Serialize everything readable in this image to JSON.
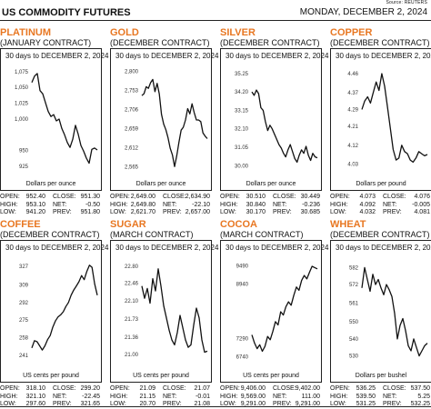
{
  "header": {
    "source": "Source: REUTERS",
    "title": "US COMMODITY FUTURES",
    "date": "MONDAY, DECEMBER 2, 2024"
  },
  "stat_labels": {
    "open": "OPEN:",
    "close": "CLOSE:",
    "high": "HIGH:",
    "net": "NET:",
    "low": "LOW:",
    "prev": "PREV:"
  },
  "colors": {
    "commodity_name": "#e87722",
    "line": "#111111"
  },
  "chart_data": [
    {
      "type": "line",
      "name": "PLATINUM",
      "contract": "(JANUARY CONTRACT)",
      "period": "30 days to DECEMBER 2, 2024",
      "unit": "Dollars per ounce",
      "yticks": [
        "925",
        "950",
        "1,000",
        "1,025",
        "1,050",
        "1,075"
      ],
      "ytick_values": [
        925,
        950,
        1000,
        1025,
        1050,
        1075
      ],
      "ylim": [
        915,
        1082
      ],
      "values": [
        1058,
        1068,
        1072,
        1045,
        1040,
        1026,
        1012,
        1004,
        1007,
        997,
        1000,
        985,
        975,
        963,
        955,
        968,
        990,
        976,
        958,
        949,
        938,
        930,
        952,
        954,
        951
      ],
      "stats": {
        "open": "952.40",
        "close": "951.30",
        "high": "953.10",
        "net": "-0.50",
        "low": "941.20",
        "prev": "951.80"
      }
    },
    {
      "type": "line",
      "name": "GOLD",
      "contract": "(DECEMBER CONTRACT)",
      "period": "30 days to DECEMBER 2, 2024",
      "unit": "Dollars per ounce",
      "yticks": [
        "2,565",
        "2,612",
        "2,659",
        "2,706",
        "2,753",
        "2,800"
      ],
      "ytick_values": [
        2565,
        2612,
        2659,
        2706,
        2753,
        2800
      ],
      "ylim": [
        2550,
        2810
      ],
      "values": [
        2740,
        2745,
        2762,
        2758,
        2772,
        2780,
        2750,
        2770,
        2744,
        2694,
        2670,
        2656,
        2636,
        2610,
        2594,
        2565,
        2592,
        2625,
        2655,
        2662,
        2680,
        2708,
        2695,
        2720,
        2698,
        2680,
        2680,
        2676,
        2648,
        2640,
        2634
      ],
      "stats": {
        "open": "2,649.00",
        "close": "2,634.90",
        "high": "2,649.80",
        "net": "-22.10",
        "low": "2,621.70",
        "prev": "2,657.00"
      }
    },
    {
      "type": "line",
      "name": "SILVER",
      "contract": "(DECEMBER CONTRACT)",
      "period": "30 days to DECEMBER 2, 2024",
      "unit": "Dollars per ounce",
      "yticks": [
        "30.00",
        "31.05",
        "32.10",
        "33.15",
        "34.20",
        "35.25"
      ],
      "ytick_values": [
        30.0,
        31.05,
        32.1,
        33.15,
        34.2,
        35.25
      ],
      "ylim": [
        29.6,
        35.6
      ],
      "values": [
        34.2,
        34.0,
        34.3,
        34.1,
        33.3,
        33.15,
        32.5,
        32.0,
        32.3,
        32.1,
        31.8,
        31.5,
        31.2,
        31.0,
        30.7,
        30.5,
        30.9,
        31.2,
        30.8,
        30.4,
        30.2,
        30.6,
        30.9,
        30.7,
        31.1,
        30.6,
        30.3,
        30.7,
        30.5,
        30.45
      ],
      "stats": {
        "open": "30.510",
        "close": "30.449",
        "high": "30.840",
        "net": "-0.236",
        "low": "30.170",
        "prev": "30.685"
      }
    },
    {
      "type": "line",
      "name": "COPPER",
      "contract": "(DECEMBER CONTRACT)",
      "period": "30 days to DECEMBER 2, 2024",
      "unit": "Dollars per pound",
      "yticks": [
        "4.03",
        "4.12",
        "4.21",
        "4.29",
        "4.37",
        "4.46"
      ],
      "ytick_values": [
        4.03,
        4.12,
        4.21,
        4.29,
        4.37,
        4.46
      ],
      "ylim": [
        3.99,
        4.49
      ],
      "values": [
        4.29,
        4.33,
        4.35,
        4.32,
        4.37,
        4.42,
        4.38,
        4.46,
        4.4,
        4.3,
        4.2,
        4.1,
        4.05,
        4.06,
        4.12,
        4.09,
        4.08,
        4.05,
        4.04,
        4.06,
        4.09,
        4.08,
        4.07,
        4.076
      ],
      "stats": {
        "open": "4.073",
        "close": "4.076",
        "high": "4.092",
        "net": "-0.005",
        "low": "4.032",
        "prev": "4.081"
      }
    },
    {
      "type": "line",
      "name": "COFFEE",
      "contract": "(DECEMBER CONTRACT)",
      "period": "30 days to DECEMBER 2, 2024",
      "unit": "US cents per pound",
      "yticks": [
        "241",
        "258",
        "275",
        "292",
        "309",
        "327"
      ],
      "ytick_values": [
        241,
        258,
        275,
        292,
        309,
        327
      ],
      "ylim": [
        232,
        334
      ],
      "values": [
        248,
        255,
        254,
        250,
        246,
        250,
        256,
        260,
        268,
        274,
        278,
        280,
        283,
        288,
        292,
        299,
        304,
        308,
        312,
        318,
        314,
        322,
        328,
        326,
        310,
        299
      ],
      "stats": {
        "open": "318.10",
        "close": "299.20",
        "high": "321.10",
        "net": "-22.45",
        "low": "297.60",
        "prev": "321.65"
      }
    },
    {
      "type": "line",
      "name": "SUGAR",
      "contract": "(MARCH CONTRACT)",
      "period": "30 days to DECEMBER 2, 2024",
      "unit": "US cents per pound",
      "yticks": [
        "21.00",
        "21.36",
        "21.73",
        "22.10",
        "22.46",
        "22.80"
      ],
      "ytick_values": [
        21.0,
        21.36,
        21.73,
        22.1,
        22.46,
        22.8
      ],
      "ylim": [
        20.8,
        22.95
      ],
      "values": [
        22.4,
        22.15,
        22.35,
        22.05,
        22.55,
        22.3,
        22.75,
        22.4,
        22.0,
        21.75,
        21.5,
        21.3,
        21.2,
        21.45,
        21.8,
        21.55,
        21.3,
        21.15,
        21.2,
        21.6,
        21.95,
        21.75,
        21.3,
        21.05,
        21.07
      ],
      "stats": {
        "open": "21.09",
        "close": "21.07",
        "high": "21.15",
        "net": "-0.01",
        "low": "20.70",
        "prev": "21.08"
      }
    },
    {
      "type": "line",
      "name": "COCOA",
      "contract": "(MARCH CONTRACT)",
      "period": "30 days to DECEMBER 2, 2024",
      "unit": "US cents per pound",
      "yticks": [
        "6740",
        "7290",
        "8940",
        "9490"
      ],
      "ytick_values": [
        6740,
        7290,
        8940,
        9490
      ],
      "ylim": [
        6500,
        9700
      ],
      "values": [
        7400,
        7150,
        6980,
        7100,
        6900,
        7050,
        7350,
        7250,
        7500,
        7800,
        7700,
        8100,
        8000,
        8250,
        8400,
        8300,
        8600,
        8850,
        8750,
        9050,
        9200,
        9100,
        9300,
        9480,
        9440,
        9402
      ],
      "stats": {
        "open": "9,406.00",
        "close": "9,402.00",
        "high": "9,569.00",
        "net": "111.00",
        "low": "9,291.00",
        "prev": "9,291.00"
      }
    },
    {
      "type": "line",
      "name": "WHEAT",
      "contract": "(DECEMBER CONTRACT)",
      "period": "30 days to DECEMBER 2, 2024",
      "unit": "Dollars per bushel",
      "yticks": [
        "530",
        "540",
        "550",
        "561",
        "572",
        "582"
      ],
      "ytick_values": [
        530,
        540,
        550,
        561,
        572,
        582
      ],
      "ylim": [
        525,
        587
      ],
      "values": [
        570,
        582,
        575,
        568,
        578,
        572,
        575,
        570,
        566,
        572,
        569,
        565,
        555,
        540,
        548,
        552,
        545,
        536,
        533,
        540,
        535,
        530,
        533,
        536,
        537.5
      ],
      "stats": {
        "open": "536.25",
        "close": "537.50",
        "high": "539.50",
        "net": "5.25",
        "low": "531.25",
        "prev": "532.25"
      }
    }
  ]
}
